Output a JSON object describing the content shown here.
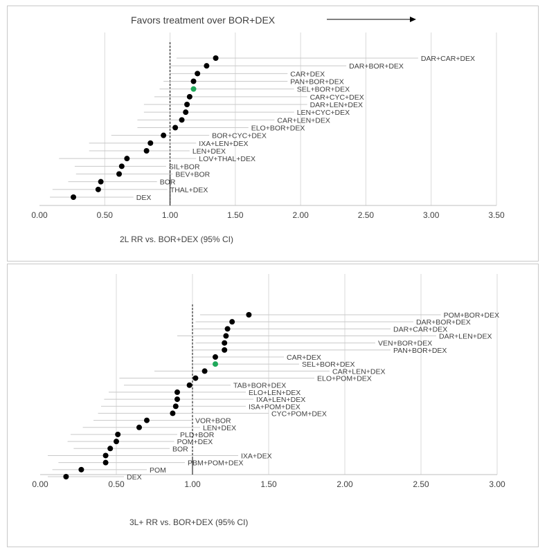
{
  "header": {
    "favors_text": "Favors treatment over BOR+DEX"
  },
  "chart_data": [
    {
      "type": "scatter",
      "subtype": "forest-plot",
      "title": "Favors treatment over BOR+DEX",
      "xlabel": "2L RR vs. BOR+DEX (95% CI)",
      "xlim": [
        0,
        3.5
      ],
      "xticks": [
        "0.00",
        "0.50",
        "1.00",
        "1.50",
        "2.00",
        "2.50",
        "3.00",
        "3.50"
      ],
      "reference_line": 1.0,
      "grid": true,
      "highlight_color": "#1fa85a",
      "point_color": "#000000",
      "rows": [
        {
          "label": "DAR+CAR+DEX",
          "rr": 1.35,
          "lo": 1.05,
          "hi": 2.9
        },
        {
          "label": "DAR+BOR+DEX",
          "rr": 1.28,
          "lo": 1.0,
          "hi": 2.35
        },
        {
          "label": "CAR+DEX",
          "rr": 1.21,
          "lo": 1.0,
          "hi": 1.9
        },
        {
          "label": "PAN+BOR+DEX",
          "rr": 1.18,
          "lo": 0.95,
          "hi": 1.9
        },
        {
          "label": "SEL+BOR+DEX",
          "rr": 1.18,
          "lo": 0.92,
          "hi": 1.95,
          "highlight": true
        },
        {
          "label": "CAR+CYC+DEX",
          "rr": 1.15,
          "lo": 0.88,
          "hi": 2.05
        },
        {
          "label": "DAR+LEN+DEX",
          "rr": 1.13,
          "lo": 0.8,
          "hi": 2.05
        },
        {
          "label": "LEN+CYC+DEX",
          "rr": 1.12,
          "lo": 0.8,
          "hi": 1.95
        },
        {
          "label": "CAR+LEN+DEX",
          "rr": 1.09,
          "lo": 0.75,
          "hi": 1.8
        },
        {
          "label": "ELO+BOR+DEX",
          "rr": 1.04,
          "lo": 0.75,
          "hi": 1.6
        },
        {
          "label": "BOR+CYC+DEX",
          "rr": 0.95,
          "lo": 0.55,
          "hi": 1.3
        },
        {
          "label": "IXA+LEN+DEX",
          "rr": 0.85,
          "lo": 0.38,
          "hi": 1.2
        },
        {
          "label": "LEN+DEX",
          "rr": 0.82,
          "lo": 0.38,
          "hi": 1.15
        },
        {
          "label": "LOV+THAL+DEX",
          "rr": 0.67,
          "lo": 0.15,
          "hi": 1.2
        },
        {
          "label": "SIL+BOR",
          "rr": 0.63,
          "lo": 0.27,
          "hi": 0.97
        },
        {
          "label": "BEV+BOR",
          "rr": 0.61,
          "lo": 0.28,
          "hi": 1.02
        },
        {
          "label": "BOR",
          "rr": 0.47,
          "lo": 0.22,
          "hi": 0.9
        },
        {
          "label": "THAL+DEX",
          "rr": 0.45,
          "lo": 0.1,
          "hi": 0.98
        },
        {
          "label": "DEX",
          "rr": 0.26,
          "lo": 0.08,
          "hi": 0.72
        }
      ]
    },
    {
      "type": "scatter",
      "subtype": "forest-plot",
      "xlabel": "3L+ RR vs. BOR+DEX (95% CI)",
      "xlim": [
        0,
        3.0
      ],
      "xticks": [
        "0.00",
        "0.50",
        "1.00",
        "1.50",
        "2.00",
        "2.50",
        "3.00"
      ],
      "reference_line": 1.0,
      "grid": true,
      "highlight_color": "#1fa85a",
      "point_color": "#000000",
      "rows": [
        {
          "label": "POM+BOR+DEX",
          "rr": 1.37,
          "lo": 1.05,
          "hi": 2.63
        },
        {
          "label": "DAR+BOR+DEX",
          "rr": 1.26,
          "lo": 1.02,
          "hi": 2.45
        },
        {
          "label": "DAR+CAR+DEX",
          "rr": 1.23,
          "lo": 1.0,
          "hi": 2.3
        },
        {
          "label": "DAR+LEN+DEX",
          "rr": 1.22,
          "lo": 0.9,
          "hi": 2.6
        },
        {
          "label": "VEN+BOR+DEX",
          "rr": 1.21,
          "lo": 1.02,
          "hi": 2.2
        },
        {
          "label": "PAN+BOR+DEX",
          "rr": 1.21,
          "lo": 1.0,
          "hi": 2.3
        },
        {
          "label": "CAR+DEX",
          "rr": 1.15,
          "lo": 1.0,
          "hi": 1.6
        },
        {
          "label": "SEL+BOR+DEX",
          "rr": 1.15,
          "lo": 1.0,
          "hi": 1.7,
          "highlight": true
        },
        {
          "label": "CAR+LEN+DEX",
          "rr": 1.08,
          "lo": 0.75,
          "hi": 1.9
        },
        {
          "label": "ELO+POM+DEX",
          "rr": 1.02,
          "lo": 0.52,
          "hi": 1.8
        },
        {
          "label": "TAB+BOR+DEX",
          "rr": 0.98,
          "lo": 0.55,
          "hi": 1.25
        },
        {
          "label": "ELO+LEN+DEX",
          "rr": 0.9,
          "lo": 0.45,
          "hi": 1.35
        },
        {
          "label": "IXA+LEN+DEX",
          "rr": 0.9,
          "lo": 0.42,
          "hi": 1.4
        },
        {
          "label": "ISA+POM+DEX",
          "rr": 0.89,
          "lo": 0.4,
          "hi": 1.35
        },
        {
          "label": "CYC+POM+DEX",
          "rr": 0.87,
          "lo": 0.38,
          "hi": 1.5
        },
        {
          "label": "VOR+BOR",
          "rr": 0.7,
          "lo": 0.35,
          "hi": 1.0
        },
        {
          "label": "LEN+DEX",
          "rr": 0.65,
          "lo": 0.28,
          "hi": 1.05
        },
        {
          "label": "PLD+BOR",
          "rr": 0.51,
          "lo": 0.2,
          "hi": 0.9
        },
        {
          "label": "POM+DEX",
          "rr": 0.5,
          "lo": 0.18,
          "hi": 0.88
        },
        {
          "label": "BOR",
          "rr": 0.46,
          "lo": 0.22,
          "hi": 0.85
        },
        {
          "label": "IXA+DEX",
          "rr": 0.43,
          "lo": 0.05,
          "hi": 1.3
        },
        {
          "label": "PBM+POM+DEX",
          "rr": 0.43,
          "lo": 0.12,
          "hi": 0.95
        },
        {
          "label": "POM",
          "rr": 0.27,
          "lo": 0.08,
          "hi": 0.7
        },
        {
          "label": "DEX",
          "rr": 0.17,
          "lo": 0.05,
          "hi": 0.55
        }
      ]
    }
  ]
}
